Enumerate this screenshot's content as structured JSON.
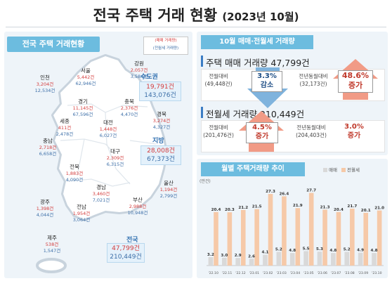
{
  "title": {
    "main": "전국 주택 거래 현황",
    "sub": "(2023년 10월)"
  },
  "left": {
    "header": "전국 주택 거래현황",
    "legend": {
      "sale": "(매매 거래량)",
      "lease": "(전월세 거래량)"
    },
    "regions": [
      {
        "name": "강원",
        "sale": "2,057건",
        "lease": "3,584건"
      },
      {
        "name": "서울",
        "sale": "5,442건",
        "lease": "62,946건"
      },
      {
        "name": "인천",
        "sale": "3,204건",
        "lease": "12,534건"
      },
      {
        "name": "경기",
        "sale": "11,145건",
        "lease": "67,596건"
      },
      {
        "name": "충북",
        "sale": "2,376건",
        "lease": "4,470건"
      },
      {
        "name": "세종",
        "sale": "411건",
        "lease": "2,478건"
      },
      {
        "name": "경북",
        "sale": "3,274건",
        "lease": "4,327건"
      },
      {
        "name": "충남",
        "sale": "2,718건",
        "lease": "6,658건"
      },
      {
        "name": "대전",
        "sale": "1,448건",
        "lease": "6,027건"
      },
      {
        "name": "대구",
        "sale": "2,309건",
        "lease": "6,315건"
      },
      {
        "name": "전북",
        "sale": "1,883건",
        "lease": "4,090건"
      },
      {
        "name": "울산",
        "sale": "1,194건",
        "lease": "2,799건"
      },
      {
        "name": "경남",
        "sale": "3,460건",
        "lease": "7,021건"
      },
      {
        "name": "광주",
        "sale": "1,398건",
        "lease": "4,044건"
      },
      {
        "name": "부산",
        "sale": "2,988건",
        "lease": "10,948건"
      },
      {
        "name": "전남",
        "sale": "1,954건",
        "lease": "3,064건"
      },
      {
        "name": "제주",
        "sale": "538건",
        "lease": "1,547건"
      }
    ],
    "capital": {
      "name": "수도권",
      "sale": "19,791건",
      "lease": "143,076건"
    },
    "local": {
      "name": "지방",
      "sale": "28,008건",
      "lease": "67,373건"
    },
    "nation": {
      "name": "전국",
      "sale": "47,799건",
      "lease": "210,449건"
    }
  },
  "summary": {
    "header": "10월 매매·전월세 거래량",
    "sale": {
      "title": "주택 매매 거래량 47,799건",
      "mom_label": "전월대비",
      "mom_base": "(49,448건)",
      "mom_pct": "3.3%",
      "mom_dir": "감소",
      "yoy_label": "전년동월대비",
      "yoy_base": "(32,173건)",
      "yoy_pct": "48.6%",
      "yoy_dir": "증가"
    },
    "lease": {
      "title": "전월세 거래량 210,449건",
      "mom_label": "전월대비",
      "mom_base": "(201,476건)",
      "mom_pct": "4.5%",
      "mom_dir": "증가",
      "yoy_label": "전년동월대비",
      "yoy_base": "(204,403건)",
      "yoy_pct": "3.0%",
      "yoy_dir": "증가"
    }
  },
  "colors": {
    "sale_bar": "#d9d9d9",
    "lease_bar": "#f6c9a8",
    "sale_text": "#d43c3c",
    "lease_text": "#3d6fa8",
    "accent": "#6cbcdf"
  },
  "chart_data": {
    "type": "bar",
    "title": "월별 주택거래량 추이",
    "unit": "(만건)",
    "categories": [
      "'22.10",
      "'22.11",
      "'22.12",
      "'23.01",
      "'23.02",
      "'23.03",
      "'23.04",
      "'23.05",
      "'23.06",
      "'23.07",
      "'23.08",
      "'23.09",
      "'23.10"
    ],
    "series": [
      {
        "name": "매매",
        "values": [
          3.2,
          3.0,
          2.9,
          2.6,
          4.1,
          5.2,
          4.8,
          5.5,
          5.3,
          4.8,
          5.2,
          4.9,
          4.8
        ]
      },
      {
        "name": "전월세",
        "values": [
          20.4,
          20.3,
          21.2,
          21.5,
          27.3,
          26.4,
          21.9,
          27.7,
          21.3,
          20.4,
          21.7,
          20.1,
          21.0
        ]
      }
    ],
    "ylim": [
      0,
      30
    ],
    "legend": "top-right",
    "grid": false
  }
}
